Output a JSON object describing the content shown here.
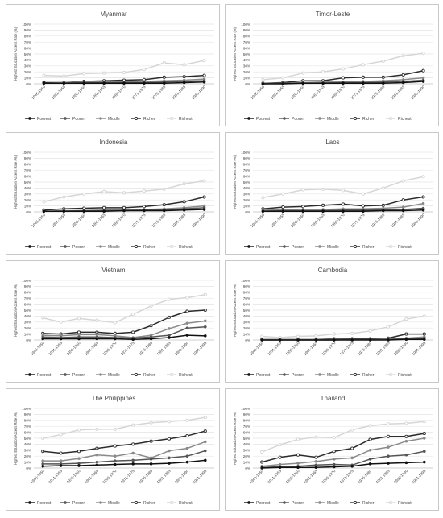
{
  "legend_labels": [
    "Poorest",
    "Poorer",
    "Middle",
    "Richer",
    "Richest"
  ],
  "ylabel": "Highest Education Access Rate (%)",
  "y_ticks": [
    "0%",
    "10%",
    "20%",
    "30%",
    "40%",
    "50%",
    "60%",
    "70%",
    "80%",
    "90%",
    "100%"
  ],
  "colors": {
    "Poorest": "#111111",
    "Poorer": "#555555",
    "Middle": "#8a8a8a",
    "Richer": "#2b2b2b",
    "Richest": "#d6d6d6",
    "grid": "#e4e4e4",
    "axis": "#bfbfbf",
    "text": "#444444",
    "border": "#c9c9c9"
  },
  "chart_data": [
    {
      "type": "line",
      "title": "Myanmar",
      "categories": [
        "1946-1950",
        "1951-1955",
        "1956-1960",
        "1961-1965",
        "1966-1970",
        "1971-1975",
        "1976-1980",
        "1981-1985",
        "1986-1990"
      ],
      "ylim": [
        0,
        100
      ],
      "series": [
        {
          "name": "Poorest",
          "values": [
            1,
            1,
            1,
            1,
            1,
            1,
            1,
            2,
            3
          ]
        },
        {
          "name": "Poorer",
          "values": [
            1,
            1,
            2,
            2,
            2,
            2,
            3,
            4,
            5
          ]
        },
        {
          "name": "Middle",
          "values": [
            1,
            2,
            3,
            3,
            3,
            4,
            5,
            6,
            8
          ]
        },
        {
          "name": "Richer",
          "values": [
            2,
            2,
            4,
            5,
            6,
            7,
            11,
            12,
            14
          ]
        },
        {
          "name": "Richest",
          "values": [
            14,
            13,
            17,
            18,
            19,
            24,
            35,
            32,
            39
          ]
        }
      ]
    },
    {
      "type": "line",
      "title": "Timor-Leste",
      "categories": [
        "1946-1950",
        "1951-1955",
        "1956-1960",
        "1961-1965",
        "1966-1970",
        "1971-1975",
        "1976-1980",
        "1981-1985",
        "1986-1990"
      ],
      "ylim": [
        0,
        100
      ],
      "series": [
        {
          "name": "Poorest",
          "values": [
            0,
            0,
            1,
            1,
            1,
            1,
            1,
            2,
            4
          ]
        },
        {
          "name": "Poorer",
          "values": [
            0,
            1,
            1,
            1,
            2,
            2,
            3,
            4,
            6
          ]
        },
        {
          "name": "Middle",
          "values": [
            1,
            1,
            2,
            3,
            3,
            4,
            5,
            7,
            10
          ]
        },
        {
          "name": "Richer",
          "values": [
            1,
            2,
            5,
            5,
            10,
            11,
            11,
            15,
            22
          ]
        },
        {
          "name": "Richest",
          "values": [
            7,
            10,
            18,
            20,
            25,
            32,
            38,
            47,
            51
          ]
        }
      ]
    },
    {
      "type": "line",
      "title": "Indonesia",
      "categories": [
        "1946-1950",
        "1951-1955",
        "1956-1960",
        "1961-1965",
        "1966-1970",
        "1971-1975",
        "1976-1980",
        "1981-1985",
        "1986-1990"
      ],
      "ylim": [
        0,
        100
      ],
      "series": [
        {
          "name": "Poorest",
          "values": [
            1,
            1,
            1,
            1,
            2,
            2,
            2,
            3,
            4
          ]
        },
        {
          "name": "Poorer",
          "values": [
            1,
            1,
            2,
            2,
            2,
            3,
            3,
            5,
            7
          ]
        },
        {
          "name": "Middle",
          "values": [
            1,
            2,
            2,
            3,
            3,
            4,
            5,
            7,
            10
          ]
        },
        {
          "name": "Richer",
          "values": [
            3,
            5,
            6,
            7,
            7,
            9,
            12,
            17,
            25
          ]
        },
        {
          "name": "Richest",
          "values": [
            17,
            25,
            30,
            34,
            32,
            35,
            38,
            47,
            52
          ]
        }
      ]
    },
    {
      "type": "line",
      "title": "Laos",
      "categories": [
        "1946-1950",
        "1951-1955",
        "1956-1960",
        "1961-1965",
        "1966-1970",
        "1971-1975",
        "1976-1980",
        "1981-1985",
        "1986-1990"
      ],
      "ylim": [
        0,
        100
      ],
      "series": [
        {
          "name": "Poorest",
          "values": [
            1,
            1,
            1,
            1,
            1,
            1,
            2,
            2,
            3
          ]
        },
        {
          "name": "Poorer",
          "values": [
            1,
            2,
            2,
            2,
            3,
            3,
            3,
            4,
            6
          ]
        },
        {
          "name": "Middle",
          "values": [
            3,
            3,
            4,
            4,
            5,
            5,
            6,
            8,
            14
          ]
        },
        {
          "name": "Richer",
          "values": [
            5,
            8,
            9,
            11,
            13,
            10,
            11,
            20,
            25
          ]
        },
        {
          "name": "Richest",
          "values": [
            24,
            30,
            37,
            38,
            36,
            30,
            40,
            52,
            59
          ]
        }
      ]
    },
    {
      "type": "line",
      "title": "Vietnam",
      "categories": [
        "1946-1950",
        "1951-1955",
        "1956-1960",
        "1961-1965",
        "1966-1970",
        "1971-1975",
        "1976-1980",
        "1981-1985",
        "1986-1990",
        "1991-1995"
      ],
      "ylim": [
        0,
        100
      ],
      "series": [
        {
          "name": "Poorest",
          "values": [
            2,
            2,
            2,
            2,
            2,
            1,
            2,
            4,
            8,
            7
          ]
        },
        {
          "name": "Poorer",
          "values": [
            5,
            4,
            5,
            5,
            4,
            3,
            5,
            8,
            20,
            22
          ]
        },
        {
          "name": "Middle",
          "values": [
            8,
            7,
            9,
            9,
            7,
            4,
            8,
            19,
            28,
            32
          ]
        },
        {
          "name": "Richer",
          "values": [
            11,
            10,
            13,
            13,
            11,
            13,
            24,
            38,
            48,
            50
          ]
        },
        {
          "name": "Richest",
          "values": [
            37,
            30,
            36,
            33,
            29,
            43,
            57,
            68,
            71,
            76
          ]
        }
      ]
    },
    {
      "type": "line",
      "title": "Cambodia",
      "categories": [
        "1946-1950",
        "1951-1955",
        "1956-1960",
        "1961-1965",
        "1966-1970",
        "1971-1975",
        "1976-1980",
        "1981-1985",
        "1986-1990",
        "1991-1995"
      ],
      "ylim": [
        0,
        100
      ],
      "series": [
        {
          "name": "Poorest",
          "values": [
            0,
            0,
            0,
            0,
            0,
            0,
            0,
            0,
            1,
            1
          ]
        },
        {
          "name": "Poorer",
          "values": [
            0,
            0,
            0,
            0,
            0,
            1,
            1,
            1,
            2,
            3
          ]
        },
        {
          "name": "Middle",
          "values": [
            1,
            1,
            1,
            1,
            1,
            1,
            1,
            2,
            3,
            5
          ]
        },
        {
          "name": "Richer",
          "values": [
            1,
            1,
            1,
            1,
            2,
            2,
            2,
            3,
            10,
            10
          ]
        },
        {
          "name": "Richest",
          "values": [
            6,
            4,
            6,
            7,
            10,
            11,
            15,
            22,
            35,
            40
          ]
        }
      ]
    },
    {
      "type": "line",
      "title": "The Philippines",
      "categories": [
        "1946-1950",
        "1951-1955",
        "1956-1960",
        "1961-1965",
        "1966-1970",
        "1971-1975",
        "1976-1980",
        "1981-1985",
        "1986-1990",
        "1991-1995"
      ],
      "ylim": [
        0,
        100
      ],
      "series": [
        {
          "name": "Poorest",
          "values": [
            3,
            4,
            4,
            5,
            6,
            7,
            7,
            8,
            10,
            13
          ]
        },
        {
          "name": "Poorer",
          "values": [
            7,
            7,
            8,
            10,
            12,
            13,
            15,
            17,
            20,
            29
          ]
        },
        {
          "name": "Middle",
          "values": [
            12,
            12,
            16,
            22,
            20,
            25,
            17,
            29,
            33,
            44
          ]
        },
        {
          "name": "Richer",
          "values": [
            28,
            25,
            28,
            33,
            37,
            40,
            45,
            49,
            54,
            62
          ]
        },
        {
          "name": "Richest",
          "values": [
            50,
            56,
            64,
            65,
            65,
            72,
            76,
            78,
            80,
            85
          ]
        }
      ]
    },
    {
      "type": "line",
      "title": "Thailand",
      "categories": [
        "1946-1950",
        "1951-1955",
        "1956-1960",
        "1961-1965",
        "1966-1970",
        "1971-1975",
        "1976-1980",
        "1981-1985",
        "1986-1990",
        "1991-1995"
      ],
      "ylim": [
        0,
        100
      ],
      "series": [
        {
          "name": "Poorest",
          "values": [
            0,
            1,
            1,
            1,
            2,
            3,
            7,
            8,
            9,
            10
          ]
        },
        {
          "name": "Poorer",
          "values": [
            1,
            2,
            3,
            5,
            6,
            5,
            15,
            20,
            22,
            28
          ]
        },
        {
          "name": "Middle",
          "values": [
            3,
            6,
            8,
            11,
            15,
            17,
            30,
            35,
            45,
            50
          ]
        },
        {
          "name": "Richer",
          "values": [
            10,
            18,
            22,
            18,
            28,
            33,
            48,
            53,
            53,
            58
          ]
        },
        {
          "name": "Richest",
          "values": [
            27,
            39,
            48,
            52,
            51,
            64,
            71,
            74,
            75,
            78
          ]
        }
      ]
    }
  ]
}
